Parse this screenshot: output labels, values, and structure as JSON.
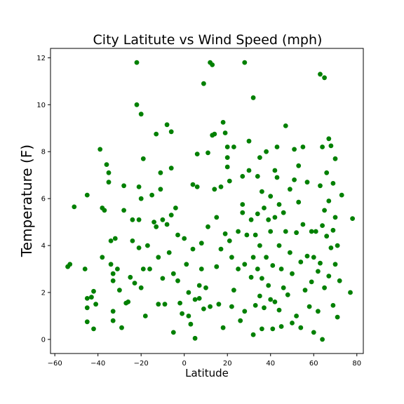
{
  "chart_data": {
    "type": "scatter",
    "title": "City Latitute vs Wind Speed (mph)",
    "xlabel": "Latitude",
    "ylabel": "Temperature (F)",
    "xlim": [
      -62,
      83
    ],
    "ylim": [
      -0.6,
      12.4
    ],
    "xticks": [
      -60,
      -40,
      -20,
      0,
      20,
      40,
      60,
      80
    ],
    "yticks": [
      0,
      2,
      4,
      6,
      8,
      10,
      12
    ],
    "grid": false,
    "marker_color": "#008000",
    "points": [
      [
        -54,
        3.1
      ],
      [
        -53,
        3.2
      ],
      [
        -51,
        5.65
      ],
      [
        -46,
        3.0
      ],
      [
        -45,
        6.15
      ],
      [
        -45,
        1.75
      ],
      [
        -45,
        1.35
      ],
      [
        -45,
        0.75
      ],
      [
        -43,
        1.8
      ],
      [
        -42,
        2.05
      ],
      [
        -41,
        1.5
      ],
      [
        -42,
        0.45
      ],
      [
        -39,
        8.1
      ],
      [
        -38,
        5.6
      ],
      [
        -38,
        3.5
      ],
      [
        -37,
        5.5
      ],
      [
        -36,
        7.45
      ],
      [
        -35,
        7.1
      ],
      [
        -35,
        6.7
      ],
      [
        -34,
        4.2
      ],
      [
        -34,
        3.2
      ],
      [
        -33,
        2.8
      ],
      [
        -33,
        2.5
      ],
      [
        -33,
        1.2
      ],
      [
        -33,
        0.8
      ],
      [
        -32,
        4.3
      ],
      [
        -31,
        3.0
      ],
      [
        -30,
        2.1
      ],
      [
        -29,
        0.5
      ],
      [
        -28,
        6.55
      ],
      [
        -28,
        5.5
      ],
      [
        -27,
        1.55
      ],
      [
        -26,
        1.6
      ],
      [
        -25,
        2.65
      ],
      [
        -24,
        5.1
      ],
      [
        -24,
        4.2
      ],
      [
        -23,
        2.4
      ],
      [
        -22,
        11.8
      ],
      [
        -22,
        10.0
      ],
      [
        -21,
        6.5
      ],
      [
        -21,
        5.1
      ],
      [
        -21,
        3.9
      ],
      [
        -20,
        2.2
      ],
      [
        -20,
        9.6
      ],
      [
        -20,
        6.0
      ],
      [
        -19,
        7.7
      ],
      [
        -19,
        3.0
      ],
      [
        -18,
        1.0
      ],
      [
        -17,
        4.0
      ],
      [
        -16,
        3.0
      ],
      [
        -15,
        6.15
      ],
      [
        -14,
        5.0
      ],
      [
        -13,
        8.75
      ],
      [
        -13,
        4.8
      ],
      [
        -12,
        3.5
      ],
      [
        -12,
        1.5
      ],
      [
        -11,
        7.1
      ],
      [
        -11,
        6.4
      ],
      [
        -10,
        5.1
      ],
      [
        -10,
        2.6
      ],
      [
        -9,
        1.5
      ],
      [
        -8,
        9.15
      ],
      [
        -8,
        4.9
      ],
      [
        -7,
        3.7
      ],
      [
        -6,
        8.85
      ],
      [
        -6,
        7.3
      ],
      [
        -6,
        5.3
      ],
      [
        -5,
        2.8
      ],
      [
        -5,
        0.3
      ],
      [
        -4,
        5.6
      ],
      [
        -3,
        4.45
      ],
      [
        -3,
        2.5
      ],
      [
        -2,
        1.55
      ],
      [
        -1,
        1.1
      ],
      [
        0,
        4.3
      ],
      [
        1,
        3.2
      ],
      [
        2,
        2.0
      ],
      [
        2,
        1.0
      ],
      [
        3,
        0.65
      ],
      [
        4,
        6.6
      ],
      [
        4,
        3.85
      ],
      [
        5,
        1.7
      ],
      [
        5,
        0.05
      ],
      [
        6,
        7.9
      ],
      [
        6,
        6.5
      ],
      [
        7,
        2.3
      ],
      [
        7,
        1.75
      ],
      [
        8,
        4.1
      ],
      [
        8,
        3.0
      ],
      [
        9,
        10.9
      ],
      [
        9,
        1.3
      ],
      [
        10,
        2.2
      ],
      [
        11,
        7.95
      ],
      [
        11,
        4.8
      ],
      [
        12,
        11.8
      ],
      [
        12,
        1.4
      ],
      [
        13,
        11.7
      ],
      [
        13,
        8.7
      ],
      [
        14,
        8.75
      ],
      [
        14,
        6.4
      ],
      [
        15,
        5.2
      ],
      [
        15,
        3.1
      ],
      [
        16,
        1.5
      ],
      [
        17,
        6.5
      ],
      [
        17,
        3.85
      ],
      [
        18,
        9.25
      ],
      [
        18,
        0.5
      ],
      [
        19,
        8.8
      ],
      [
        19,
        4.5
      ],
      [
        20,
        8.2
      ],
      [
        20,
        7.75
      ],
      [
        20,
        7.35
      ],
      [
        21,
        6.75
      ],
      [
        21,
        4.2
      ],
      [
        22,
        3.5
      ],
      [
        22,
        1.4
      ],
      [
        23,
        8.2
      ],
      [
        23,
        2.1
      ],
      [
        25,
        4.6
      ],
      [
        25,
        3.0
      ],
      [
        26,
        0.8
      ],
      [
        27,
        6.95
      ],
      [
        27,
        5.75
      ],
      [
        27,
        5.4
      ],
      [
        28,
        11.8
      ],
      [
        28,
        3.2
      ],
      [
        28,
        1.2
      ],
      [
        29,
        4.45
      ],
      [
        30,
        7.2
      ],
      [
        30,
        8.45
      ],
      [
        31,
        5.1
      ],
      [
        31,
        2.65
      ],
      [
        32,
        10.3
      ],
      [
        32,
        3.5
      ],
      [
        32,
        0.2
      ],
      [
        33,
        4.45
      ],
      [
        33,
        1.45
      ],
      [
        34,
        6.95
      ],
      [
        34,
        5.35
      ],
      [
        34,
        3.0
      ],
      [
        35,
        7.75
      ],
      [
        35,
        4.0
      ],
      [
        35,
        1.85
      ],
      [
        36,
        6.3
      ],
      [
        36,
        2.6
      ],
      [
        36,
        0.45
      ],
      [
        37,
        5.6
      ],
      [
        37,
        1.35
      ],
      [
        38,
        8.0
      ],
      [
        38,
        3.5
      ],
      [
        39,
        5.1
      ],
      [
        39,
        2.3
      ],
      [
        40,
        6.1
      ],
      [
        40,
        4.6
      ],
      [
        40,
        1.7
      ],
      [
        41,
        3.15
      ],
      [
        41,
        0.45
      ],
      [
        42,
        7.2
      ],
      [
        42,
        5.2
      ],
      [
        42,
        1.6
      ],
      [
        43,
        8.2
      ],
      [
        43,
        6.9
      ],
      [
        44,
        5.75
      ],
      [
        44,
        4.0
      ],
      [
        44,
        1.25
      ],
      [
        45,
        3.0
      ],
      [
        45,
        0.55
      ],
      [
        46,
        5.4
      ],
      [
        46,
        2.2
      ],
      [
        47,
        9.1
      ],
      [
        47,
        4.6
      ],
      [
        48,
        1.9
      ],
      [
        49,
        6.4
      ],
      [
        49,
        3.7
      ],
      [
        50,
        2.8
      ],
      [
        50,
        0.7
      ],
      [
        51,
        8.1
      ],
      [
        51,
        6.8
      ],
      [
        52,
        4.55
      ],
      [
        52,
        1.0
      ],
      [
        53,
        7.4
      ],
      [
        53,
        5.85
      ],
      [
        54,
        3.3
      ],
      [
        54,
        0.5
      ],
      [
        55,
        8.2
      ],
      [
        55,
        4.9
      ],
      [
        56,
        2.1
      ],
      [
        57,
        6.7
      ],
      [
        57,
        3.55
      ],
      [
        58,
        1.4
      ],
      [
        59,
        4.6
      ],
      [
        59,
        2.45
      ],
      [
        60,
        3.5
      ],
      [
        60,
        0.3
      ],
      [
        61,
        4.6
      ],
      [
        62,
        2.9
      ],
      [
        62,
        1.2
      ],
      [
        63,
        11.3
      ],
      [
        63,
        6.55
      ],
      [
        63,
        3.25
      ],
      [
        64,
        8.2
      ],
      [
        64,
        4.85
      ],
      [
        64,
        0.0
      ],
      [
        65,
        11.15
      ],
      [
        65,
        5.5
      ],
      [
        65,
        2.2
      ],
      [
        66,
        7.1
      ],
      [
        66,
        4.4
      ],
      [
        67,
        8.55
      ],
      [
        67,
        5.9
      ],
      [
        67,
        2.7
      ],
      [
        68,
        8.25
      ],
      [
        68,
        3.9
      ],
      [
        69,
        6.65
      ],
      [
        69,
        4.65
      ],
      [
        69,
        1.45
      ],
      [
        70,
        7.7
      ],
      [
        70,
        5.2
      ],
      [
        70,
        3.2
      ],
      [
        71,
        4.0
      ],
      [
        71,
        0.95
      ],
      [
        72,
        2.5
      ],
      [
        73,
        6.15
      ],
      [
        77,
        2.0
      ],
      [
        78,
        5.15
      ]
    ]
  }
}
